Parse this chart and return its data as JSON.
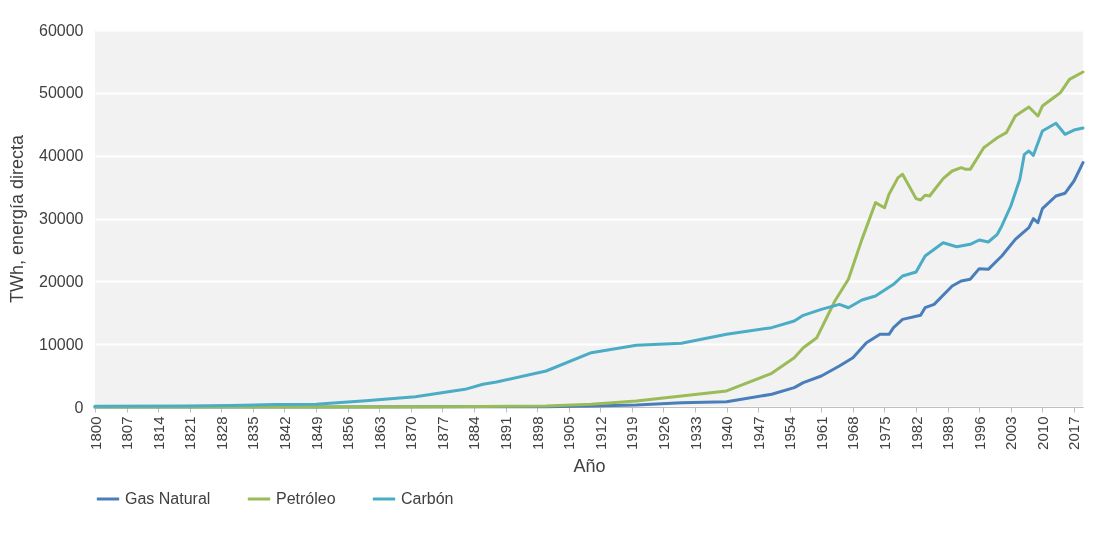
{
  "chart_data": {
    "type": "line",
    "xlabel": "Año",
    "ylabel": "TWh, energía directa",
    "xlim": [
      1800,
      2019
    ],
    "ylim": [
      0,
      60000
    ],
    "xticks": [
      1800,
      1807,
      1814,
      1821,
      1828,
      1835,
      1842,
      1849,
      1856,
      1863,
      1870,
      1877,
      1884,
      1891,
      1898,
      1905,
      1912,
      1919,
      1926,
      1933,
      1940,
      1947,
      1954,
      1961,
      1968,
      1975,
      1982,
      1989,
      1996,
      2003,
      2010,
      2017
    ],
    "yticks": [
      0,
      10000,
      20000,
      30000,
      40000,
      50000,
      60000
    ],
    "grid": "y",
    "legend": "bottom",
    "series": [
      {
        "name": "Gas Natural",
        "color": "#4a7ebb",
        "x": [
          1800,
          1850,
          1880,
          1900,
          1910,
          1920,
          1930,
          1940,
          1950,
          1955,
          1957,
          1961,
          1965,
          1968,
          1971,
          1974,
          1976,
          1977,
          1979,
          1983,
          1984,
          1986,
          1990,
          1992,
          1994,
          1996,
          1998,
          2001,
          2004,
          2007,
          2008,
          2009,
          2010,
          2013,
          2015,
          2017,
          2019
        ],
        "values": [
          0,
          0,
          20,
          50,
          150,
          300,
          690,
          850,
          2020,
          3080,
          3870,
          4930,
          6530,
          7850,
          10240,
          11570,
          11570,
          12630,
          13950,
          14590,
          15810,
          16340,
          19260,
          20050,
          20320,
          22020,
          21910,
          24030,
          26680,
          28540,
          29970,
          29340,
          31570,
          33580,
          34010,
          35970,
          38890
        ]
      },
      {
        "name": "Petróleo",
        "color": "#9bbb59",
        "x": [
          1800,
          1860,
          1880,
          1900,
          1910,
          1920,
          1930,
          1940,
          1950,
          1955,
          1957,
          1960,
          1964,
          1967,
          1970,
          1973,
          1975,
          1976,
          1978,
          1979,
          1982,
          1983,
          1984,
          1985,
          1988,
          1990,
          1992,
          1993,
          1994,
          1997,
          1998,
          2000,
          2002,
          2004,
          2007,
          2009,
          2010,
          2013,
          2014,
          2016,
          2019
        ],
        "values": [
          0,
          0,
          50,
          160,
          420,
          950,
          1750,
          2550,
          5360,
          7850,
          9440,
          11030,
          16870,
          20320,
          26680,
          32520,
          31720,
          33850,
          36500,
          37030,
          33160,
          32940,
          33690,
          33580,
          36340,
          37560,
          38090,
          37820,
          37820,
          41270,
          41800,
          42860,
          43660,
          46310,
          47750,
          46310,
          47900,
          49500,
          50030,
          52150,
          53320
        ]
      },
      {
        "name": "Carbón",
        "color": "#4bacc6",
        "x": [
          1800,
          1820,
          1830,
          1840,
          1849,
          1860,
          1871,
          1882,
          1886,
          1889,
          1900,
          1910,
          1920,
          1930,
          1940,
          1950,
          1955,
          1957,
          1961,
          1965,
          1967,
          1970,
          1973,
          1977,
          1979,
          1982,
          1984,
          1988,
          1991,
          1994,
          1996,
          1998,
          2000,
          2001,
          2003,
          2005,
          2006,
          2007,
          2008,
          2010,
          2013,
          2015,
          2017,
          2019
        ],
        "values": [
          100,
          150,
          250,
          400,
          450,
          1000,
          1640,
          2810,
          3610,
          3980,
          5730,
          8650,
          9820,
          10140,
          11570,
          12630,
          13690,
          14590,
          15540,
          16340,
          15800,
          17030,
          17670,
          19520,
          20850,
          21490,
          24030,
          26150,
          25500,
          25890,
          26580,
          26260,
          27480,
          28810,
          31990,
          36230,
          40210,
          40740,
          40050,
          43930,
          45150,
          43400,
          44080,
          44400
        ]
      }
    ]
  }
}
